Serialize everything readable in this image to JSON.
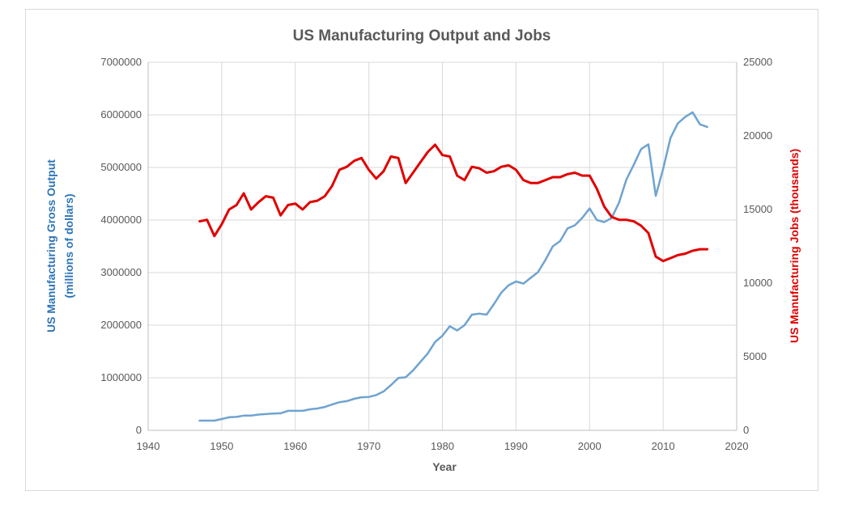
{
  "chart_data": {
    "type": "line",
    "title": "US Manufacturing Output and Jobs",
    "xlabel": "Year",
    "ylabel_left_line1": "US Manufacturing Gross Output",
    "ylabel_left_line2": "(millions of dollars)",
    "ylabel_right": "US Manufacturing Jobs (thousands)",
    "xlim": [
      1940,
      2020
    ],
    "ylim_left": [
      0,
      7000000
    ],
    "ylim_right": [
      0,
      25000
    ],
    "x_ticks": [
      "1940",
      "1950",
      "1960",
      "1970",
      "1980",
      "1990",
      "2000",
      "2010",
      "2020"
    ],
    "y_left_ticks": [
      "0",
      "1000000",
      "2000000",
      "3000000",
      "4000000",
      "5000000",
      "6000000",
      "7000000"
    ],
    "y_right_ticks": [
      "0",
      "5000",
      "10000",
      "15000",
      "20000",
      "25000"
    ],
    "grid": true,
    "x": [
      1947,
      1948,
      1949,
      1950,
      1951,
      1952,
      1953,
      1954,
      1955,
      1956,
      1957,
      1958,
      1959,
      1960,
      1961,
      1962,
      1963,
      1964,
      1965,
      1966,
      1967,
      1968,
      1969,
      1970,
      1971,
      1972,
      1973,
      1974,
      1975,
      1976,
      1977,
      1978,
      1979,
      1980,
      1981,
      1982,
      1983,
      1984,
      1985,
      1986,
      1987,
      1988,
      1989,
      1990,
      1991,
      1992,
      1993,
      1994,
      1995,
      1996,
      1997,
      1998,
      1999,
      2000,
      2001,
      2002,
      2003,
      2004,
      2005,
      2006,
      2007,
      2008,
      2009,
      2010,
      2011,
      2012,
      2013,
      2014,
      2015,
      2016
    ],
    "series": [
      {
        "name": "US Manufacturing Gross Output",
        "axis": "left",
        "color": "#6fa3d1",
        "values": [
          185000,
          185000,
          185000,
          215000,
          250000,
          255000,
          280000,
          280000,
          300000,
          310000,
          320000,
          325000,
          370000,
          370000,
          370000,
          400000,
          415000,
          445000,
          490000,
          535000,
          555000,
          600000,
          630000,
          635000,
          670000,
          740000,
          860000,
          995000,
          1010000,
          1140000,
          1300000,
          1460000,
          1680000,
          1800000,
          1980000,
          1900000,
          2000000,
          2200000,
          2220000,
          2200000,
          2400000,
          2620000,
          2760000,
          2830000,
          2790000,
          2900000,
          3010000,
          3240000,
          3500000,
          3600000,
          3840000,
          3900000,
          4040000,
          4220000,
          4000000,
          3960000,
          4040000,
          4330000,
          4770000,
          5050000,
          5350000,
          5440000,
          4460000,
          4970000,
          5560000,
          5840000,
          5960000,
          6050000,
          5820000,
          5770000
        ]
      },
      {
        "name": "US Manufacturing Jobs",
        "axis": "right",
        "color": "#e00000",
        "values": [
          14200,
          14300,
          13200,
          14000,
          15000,
          15300,
          16100,
          15000,
          15500,
          15900,
          15800,
          14600,
          15300,
          15400,
          15000,
          15500,
          15600,
          15900,
          16600,
          17700,
          17900,
          18300,
          18500,
          17700,
          17100,
          17600,
          18600,
          18500,
          16800,
          17500,
          18200,
          18900,
          19400,
          18700,
          18600,
          17300,
          17000,
          17900,
          17800,
          17500,
          17600,
          17900,
          18000,
          17700,
          17000,
          16800,
          16800,
          17000,
          17200,
          17200,
          17400,
          17500,
          17300,
          17300,
          16400,
          15200,
          14500,
          14300,
          14300,
          14200,
          13900,
          13400,
          11800,
          11500,
          11700,
          11900,
          12000,
          12200,
          12300,
          12300
        ]
      }
    ]
  }
}
